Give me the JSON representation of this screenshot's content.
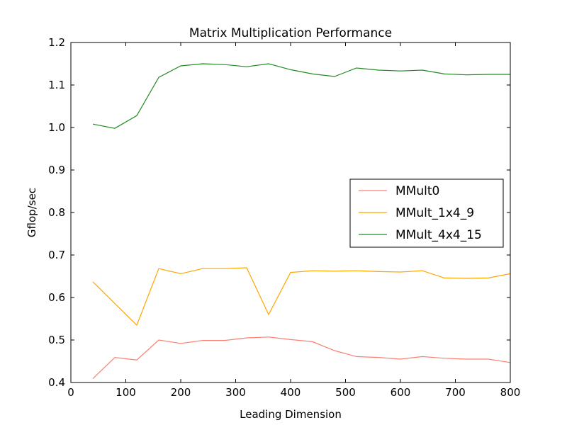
{
  "chart_data": {
    "type": "line",
    "title": "Matrix Multiplication Performance",
    "xlabel": "Leading Dimension",
    "ylabel": "Gflop/sec",
    "xlim": [
      0,
      800
    ],
    "ylim": [
      0.4,
      1.2
    ],
    "xticks": [
      0,
      100,
      200,
      300,
      400,
      500,
      600,
      700,
      800
    ],
    "yticks": [
      0.4,
      0.5,
      0.6,
      0.7,
      0.8,
      0.9,
      1.0,
      1.1,
      1.2
    ],
    "xtick_labels": [
      "0",
      "100",
      "200",
      "300",
      "400",
      "500",
      "600",
      "700",
      "800"
    ],
    "ytick_labels": [
      "0.4",
      "0.5",
      "0.6",
      "0.7",
      "0.8",
      "0.9",
      "1.0",
      "1.1",
      "1.2"
    ],
    "grid": false,
    "legend_position": "center-right",
    "x": [
      40,
      80,
      120,
      160,
      200,
      240,
      280,
      320,
      360,
      400,
      440,
      480,
      520,
      560,
      600,
      640,
      680,
      720,
      760,
      800
    ],
    "series": [
      {
        "name": "MMult0",
        "color": "#fa8072",
        "values": [
          0.409,
          0.459,
          0.453,
          0.5,
          0.492,
          0.499,
          0.499,
          0.505,
          0.507,
          0.501,
          0.496,
          0.475,
          0.461,
          0.459,
          0.455,
          0.461,
          0.457,
          0.455,
          0.455,
          0.447
        ]
      },
      {
        "name": "MMult_1x4_9",
        "color": "#ffa500",
        "values": [
          0.637,
          0.586,
          0.535,
          0.668,
          0.656,
          0.668,
          0.668,
          0.67,
          0.56,
          0.659,
          0.663,
          0.662,
          0.663,
          0.661,
          0.66,
          0.663,
          0.646,
          0.645,
          0.646,
          0.656
        ]
      },
      {
        "name": "MMult_4x4_15",
        "color": "#228b22",
        "values": [
          1.008,
          0.998,
          1.028,
          1.118,
          1.145,
          1.15,
          1.148,
          1.143,
          1.15,
          1.136,
          1.126,
          1.12,
          1.14,
          1.135,
          1.133,
          1.135,
          1.126,
          1.124,
          1.125,
          1.125
        ]
      }
    ]
  }
}
